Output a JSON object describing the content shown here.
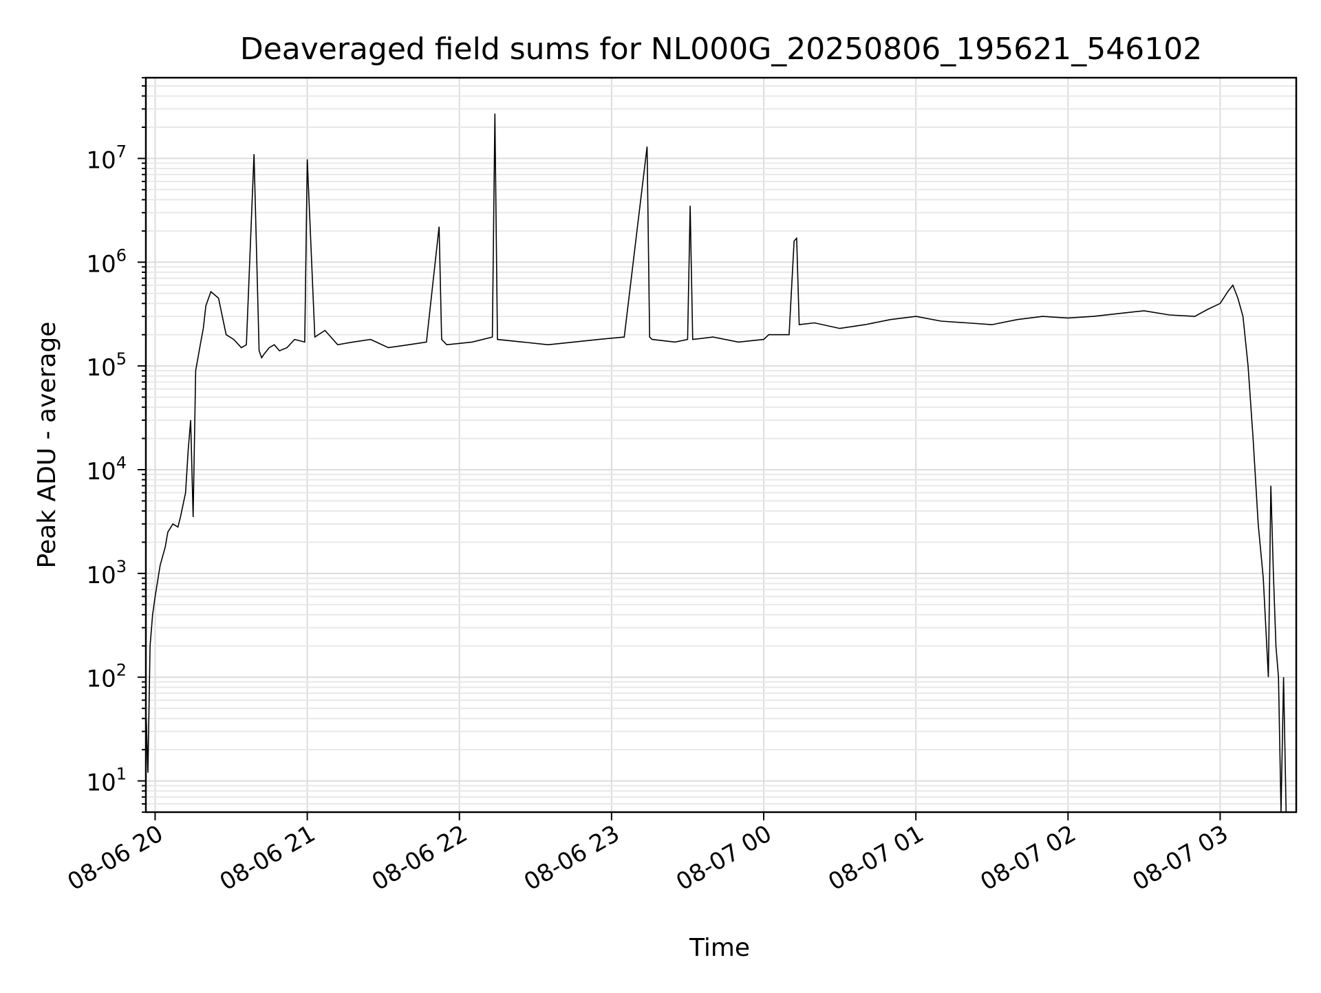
{
  "chart_data": {
    "type": "line",
    "title": "Deaveraged field sums for NL000G_20250806_195621_546102",
    "xlabel": "Time",
    "ylabel": "Peak ADU - average",
    "yscale": "log",
    "ylim": [
      5,
      60000000
    ],
    "xlim": [
      "2025-08-06 19:56:21",
      "2025-08-07 03:30:00"
    ],
    "grid": true,
    "line_color": "#000000",
    "x_ticks": [
      {
        "t": "2025-08-06 20:00",
        "label": "08-06 20"
      },
      {
        "t": "2025-08-06 21:00",
        "label": "08-06 21"
      },
      {
        "t": "2025-08-06 22:00",
        "label": "08-06 22"
      },
      {
        "t": "2025-08-06 23:00",
        "label": "08-06 23"
      },
      {
        "t": "2025-08-07 00:00",
        "label": "08-07 00"
      },
      {
        "t": "2025-08-07 01:00",
        "label": "08-07 01"
      },
      {
        "t": "2025-08-07 02:00",
        "label": "08-07 02"
      },
      {
        "t": "2025-08-07 03:00",
        "label": "08-07 03"
      }
    ],
    "y_ticks": [
      {
        "value": 10,
        "base": "10",
        "exp": "1"
      },
      {
        "value": 100,
        "base": "10",
        "exp": "2"
      },
      {
        "value": 1000,
        "base": "10",
        "exp": "3"
      },
      {
        "value": 10000,
        "base": "10",
        "exp": "4"
      },
      {
        "value": 100000,
        "base": "10",
        "exp": "5"
      },
      {
        "value": 1000000,
        "base": "10",
        "exp": "6"
      },
      {
        "value": 10000000,
        "base": "10",
        "exp": "7"
      }
    ],
    "series": [
      {
        "x": [
          "2025-08-06 19:56:30",
          "2025-08-06 19:57:10",
          "2025-08-06 19:58:00",
          "2025-08-06 19:59:00",
          "2025-08-06 20:00:00",
          "2025-08-06 20:02:00",
          "2025-08-06 20:04:00",
          "2025-08-06 20:05:00",
          "2025-08-06 20:07:00",
          "2025-08-06 20:09:00",
          "2025-08-06 20:10:00",
          "2025-08-06 20:12:00",
          "2025-08-06 20:13:00",
          "2025-08-06 20:14:00",
          "2025-08-06 20:15:00",
          "2025-08-06 20:16:00",
          "2025-08-06 20:18:00",
          "2025-08-06 20:19:00",
          "2025-08-06 20:20:00",
          "2025-08-06 20:22:00",
          "2025-08-06 20:25:00",
          "2025-08-06 20:28:00",
          "2025-08-06 20:31:00",
          "2025-08-06 20:34:00",
          "2025-08-06 20:36:00",
          "2025-08-06 20:38:00",
          "2025-08-06 20:39:00",
          "2025-08-06 20:41:00",
          "2025-08-06 20:42:00",
          "2025-08-06 20:43:00",
          "2025-08-06 20:45:00",
          "2025-08-06 20:47:00",
          "2025-08-06 20:49:00",
          "2025-08-06 20:52:00",
          "2025-08-06 20:55:00",
          "2025-08-06 20:59:00",
          "2025-08-06 21:00:00",
          "2025-08-06 21:03:00",
          "2025-08-06 21:07:00",
          "2025-08-06 21:12:00",
          "2025-08-06 21:18:00",
          "2025-08-06 21:25:00",
          "2025-08-06 21:32:00",
          "2025-08-06 21:40:00",
          "2025-08-06 21:47:00",
          "2025-08-06 21:52:00",
          "2025-08-06 21:53:00",
          "2025-08-06 21:55:00",
          "2025-08-06 22:05:00",
          "2025-08-06 22:13:00",
          "2025-08-06 22:14:00",
          "2025-08-06 22:15:00",
          "2025-08-06 22:25:00",
          "2025-08-06 22:35:00",
          "2025-08-06 22:45:00",
          "2025-08-06 22:55:00",
          "2025-08-06 23:05:00",
          "2025-08-06 23:14:00",
          "2025-08-06 23:15:00",
          "2025-08-06 23:16:00",
          "2025-08-06 23:25:00",
          "2025-08-06 23:30:00",
          "2025-08-06 23:31:00",
          "2025-08-06 23:32:00",
          "2025-08-06 23:40:00",
          "2025-08-06 23:50:00",
          "2025-08-07 00:00:00",
          "2025-08-07 00:02:00",
          "2025-08-07 00:10:00",
          "2025-08-07 00:12:00",
          "2025-08-07 00:13:00",
          "2025-08-07 00:14:00",
          "2025-08-07 00:20:00",
          "2025-08-07 00:30:00",
          "2025-08-07 00:40:00",
          "2025-08-07 00:50:00",
          "2025-08-07 01:00:00",
          "2025-08-07 01:10:00",
          "2025-08-07 01:20:00",
          "2025-08-07 01:30:00",
          "2025-08-07 01:40:00",
          "2025-08-07 01:50:00",
          "2025-08-07 02:00:00",
          "2025-08-07 02:10:00",
          "2025-08-07 02:20:00",
          "2025-08-07 02:30:00",
          "2025-08-07 02:40:00",
          "2025-08-07 02:50:00",
          "2025-08-07 02:55:00",
          "2025-08-07 03:00:00",
          "2025-08-07 03:03:00",
          "2025-08-07 03:05:00",
          "2025-08-07 03:07:00",
          "2025-08-07 03:09:00",
          "2025-08-07 03:11:00",
          "2025-08-07 03:13:00",
          "2025-08-07 03:15:00",
          "2025-08-07 03:17:00",
          "2025-08-07 03:18:00",
          "2025-08-07 03:19:00",
          "2025-08-07 03:20:00",
          "2025-08-07 03:21:00",
          "2025-08-07 03:22:00",
          "2025-08-07 03:23:00",
          "2025-08-07 03:24:00",
          "2025-08-07 03:25:00",
          "2025-08-07 03:26:00"
        ],
        "y": [
          40,
          12,
          200,
          400,
          600,
          1200,
          1800,
          2500,
          3000,
          2800,
          3500,
          6000,
          15000,
          30000,
          3500,
          90000,
          170000,
          230000,
          380000,
          520000,
          450000,
          200000,
          180000,
          150000,
          160000,
          2700000,
          11000000,
          140000,
          120000,
          130000,
          150000,
          160000,
          140000,
          150000,
          180000,
          170000,
          9800000,
          190000,
          220000,
          160000,
          170000,
          180000,
          150000,
          160000,
          170000,
          2200000,
          180000,
          160000,
          170000,
          190000,
          27000000,
          180000,
          170000,
          160000,
          170000,
          180000,
          190000,
          13000000,
          190000,
          180000,
          170000,
          180000,
          3500000,
          180000,
          190000,
          170000,
          180000,
          200000,
          200000,
          1600000,
          1700000,
          250000,
          260000,
          230000,
          250000,
          280000,
          300000,
          270000,
          260000,
          250000,
          280000,
          300000,
          290000,
          300000,
          320000,
          340000,
          310000,
          300000,
          350000,
          400000,
          520000,
          600000,
          450000,
          300000,
          100000,
          20000,
          3000,
          900,
          300,
          100,
          7000,
          1000,
          200,
          100,
          5,
          100,
          5
        ]
      }
    ]
  }
}
